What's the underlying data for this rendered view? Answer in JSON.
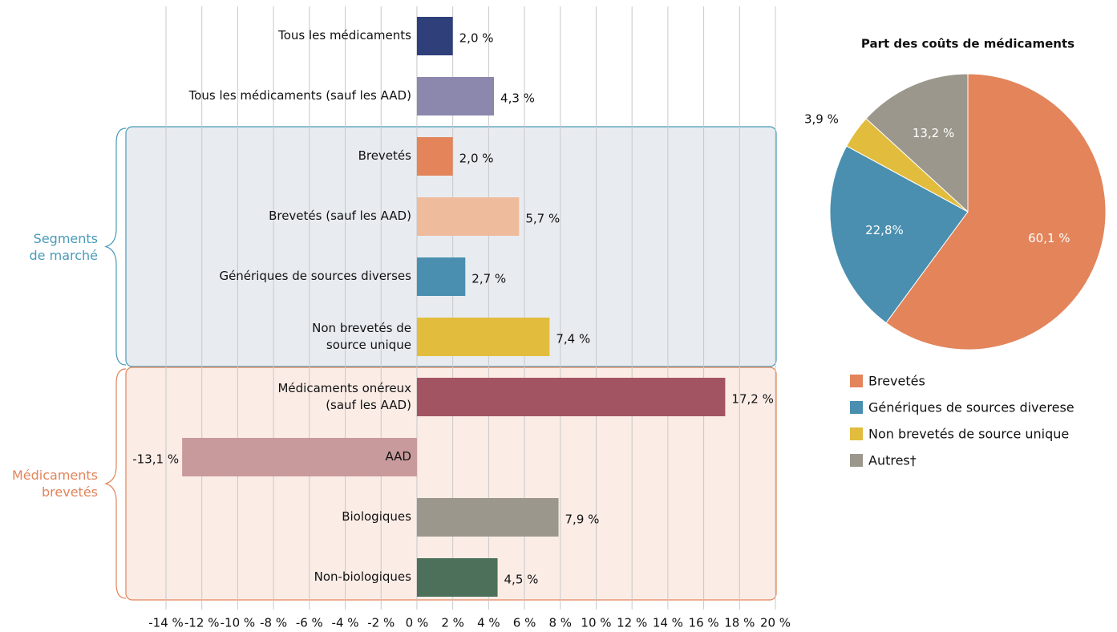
{
  "chart_data": [
    {
      "type": "barh",
      "categories": [
        "Tous les médicaments",
        "Tous les médicaments (sauf les AAD)",
        "Brevetés",
        "Brevetés (sauf les AAD)",
        "Génériques de sources diverses",
        "Non brevetés de\nsource unique",
        "Médicaments onéreux\n(sauf les AAD)",
        "AAD",
        "Biologiques",
        "Non-biologiques"
      ],
      "values": [
        2.0,
        4.3,
        2.0,
        5.7,
        2.7,
        7.4,
        17.2,
        -13.1,
        7.9,
        4.5
      ],
      "value_labels": [
        "2,0 %",
        "4,3 %",
        "2,0 %",
        "5,7 %",
        "2,7 %",
        "7,4 %",
        "17,2 %",
        "-13,1 %",
        "7,9 %",
        "4,5 %"
      ],
      "colors": [
        "#2e3f7a",
        "#8b87ad",
        "#e3845a",
        "#efbb9d",
        "#4a8fb0",
        "#e2bc3c",
        "#a35463",
        "#c89a9c",
        "#9b978c",
        "#4c7059"
      ],
      "annotations": [
        {
          "text": "Segments\nde marché",
          "color": "#4a9ab8"
        },
        {
          "text": "Médicaments\nbrevetés",
          "color": "#e3845a"
        }
      ],
      "xlim": [
        -14,
        20
      ],
      "xticks": [
        {
          "value": -14,
          "label": "-14 %"
        },
        {
          "value": -12,
          "label": "-12 %"
        },
        {
          "value": -10,
          "label": "-10 %"
        },
        {
          "value": -8,
          "label": "-8 %"
        },
        {
          "value": -6,
          "label": "-6 %"
        },
        {
          "value": -4,
          "label": "-4 %"
        },
        {
          "value": -2,
          "label": "-2 %"
        },
        {
          "value": 0,
          "label": "0 %"
        },
        {
          "value": 2,
          "label": "2 %"
        },
        {
          "value": 4,
          "label": "4 %"
        },
        {
          "value": 6,
          "label": "6 %"
        },
        {
          "value": 8,
          "label": "8 %"
        },
        {
          "value": 10,
          "label": "10 %"
        },
        {
          "value": 12,
          "label": "12 %"
        },
        {
          "value": 14,
          "label": "14 %"
        },
        {
          "value": 16,
          "label": "16 %"
        },
        {
          "value": 18,
          "label": "18 %"
        },
        {
          "value": 20,
          "label": "20 %"
        }
      ],
      "grid": true
    },
    {
      "type": "pie",
      "title": "Part des coûts de médicaments",
      "categories": [
        "Brevetés",
        "Génériques de sources diverese",
        "Non brevetés de source unique",
        "Autres†"
      ],
      "values": [
        60.1,
        22.8,
        3.9,
        13.2
      ],
      "value_labels": [
        "60,1 %",
        "22,8%",
        "3,9 %",
        "13,2 %"
      ],
      "colors": [
        "#e3845a",
        "#4a8fb0",
        "#e2bc3c",
        "#9b978c"
      ]
    }
  ]
}
